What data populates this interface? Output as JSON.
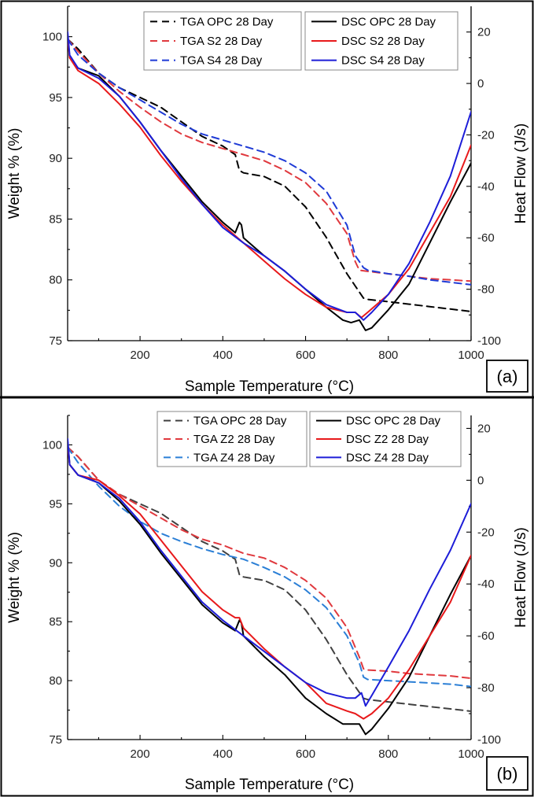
{
  "chart_data": [
    {
      "type": "line",
      "panel_label": "(a)",
      "xlabel": "Sample Temperature (°C)",
      "ylabel": "Weight % (%)",
      "y2label": "Heat Flow (J/s)",
      "xlim": [
        25,
        1000
      ],
      "ylim": [
        75,
        102.5
      ],
      "y2lim": [
        -100,
        30
      ],
      "xticks": [
        200,
        400,
        600,
        800,
        1000
      ],
      "yticks": [
        75,
        80,
        85,
        90,
        95,
        100
      ],
      "y2ticks": [
        -100,
        -80,
        -60,
        -40,
        -20,
        0,
        20
      ],
      "grid": false,
      "legend": [
        "top-center",
        "top-right"
      ],
      "series": [
        {
          "name": "TGA OPC 28 Day",
          "axis": "left",
          "style": "dashed",
          "color": "#000000",
          "x": [
            25,
            50,
            100,
            150,
            200,
            250,
            300,
            350,
            400,
            430,
            440,
            450,
            500,
            550,
            600,
            650,
            700,
            720,
            740,
            750,
            800,
            850,
            900,
            950,
            1000
          ],
          "y": [
            99.8,
            99.0,
            97.0,
            95.8,
            95.0,
            94.2,
            93.0,
            91.8,
            91.0,
            90.3,
            89.0,
            88.8,
            88.5,
            87.7,
            86.0,
            83.5,
            80.5,
            79.5,
            78.5,
            78.4,
            78.2,
            78.0,
            77.8,
            77.6,
            77.4
          ]
        },
        {
          "name": "TGA S2 28 Day",
          "axis": "left",
          "style": "dashed",
          "color": "#e0393e",
          "x": [
            25,
            50,
            100,
            150,
            200,
            250,
            300,
            350,
            400,
            450,
            500,
            550,
            600,
            650,
            700,
            720,
            730,
            750,
            800,
            850,
            900,
            950,
            1000
          ],
          "y": [
            99.8,
            98.8,
            97.0,
            95.5,
            94.2,
            93.0,
            92.0,
            91.3,
            90.8,
            90.3,
            89.8,
            89.0,
            88.0,
            86.3,
            83.8,
            81.5,
            80.8,
            80.7,
            80.5,
            80.3,
            80.1,
            80.0,
            79.9
          ]
        },
        {
          "name": "TGA S4 28 Day",
          "axis": "left",
          "style": "dashed",
          "color": "#1f3bd6",
          "x": [
            25,
            50,
            100,
            150,
            200,
            250,
            300,
            350,
            400,
            450,
            500,
            550,
            600,
            650,
            700,
            720,
            740,
            750,
            800,
            850,
            900,
            950,
            1000
          ],
          "y": [
            99.8,
            98.5,
            97.0,
            95.8,
            94.8,
            93.8,
            92.8,
            92.0,
            91.5,
            91.0,
            90.5,
            89.8,
            88.8,
            87.3,
            84.5,
            82.0,
            81.0,
            80.8,
            80.5,
            80.3,
            80.0,
            79.8,
            79.6
          ]
        },
        {
          "name": "DSC OPC 28 Day",
          "axis": "right",
          "style": "solid",
          "color": "#000000",
          "x": [
            25,
            30,
            50,
            100,
            150,
            200,
            250,
            300,
            350,
            400,
            430,
            440,
            445,
            450,
            500,
            550,
            600,
            650,
            690,
            710,
            730,
            745,
            760,
            800,
            850,
            900,
            950,
            1000
          ],
          "y": [
            19,
            10,
            6,
            3,
            -5,
            -15,
            -26,
            -36,
            -46,
            -54,
            -58,
            -54,
            -55,
            -60,
            -67,
            -73,
            -80,
            -87,
            -92,
            -93,
            -92,
            -96,
            -95,
            -88,
            -78,
            -62,
            -46,
            -31
          ]
        },
        {
          "name": "DSC S2 28 Day",
          "axis": "right",
          "style": "solid",
          "color": "#e8191b",
          "x": [
            25,
            30,
            50,
            100,
            150,
            200,
            250,
            300,
            350,
            400,
            450,
            500,
            550,
            600,
            650,
            700,
            720,
            735,
            750,
            800,
            850,
            900,
            950,
            1000
          ],
          "y": [
            18,
            10,
            5,
            0,
            -8,
            -17,
            -28,
            -38,
            -47,
            -55,
            -62,
            -69,
            -76,
            -82,
            -87,
            -89,
            -89,
            -91,
            -89,
            -82,
            -72,
            -58,
            -44,
            -24
          ]
        },
        {
          "name": "DSC S4 28 Day",
          "axis": "right",
          "style": "solid",
          "color": "#1d1dd8",
          "x": [
            25,
            30,
            50,
            100,
            150,
            200,
            250,
            300,
            350,
            400,
            450,
            500,
            550,
            600,
            650,
            700,
            720,
            740,
            760,
            800,
            850,
            900,
            950,
            1000
          ],
          "y": [
            20,
            11,
            6,
            2,
            -5,
            -15,
            -26,
            -37,
            -47,
            -56,
            -62,
            -67,
            -73,
            -80,
            -86,
            -89,
            -89,
            -92,
            -89,
            -82,
            -70,
            -54,
            -36,
            -11
          ]
        }
      ]
    },
    {
      "type": "line",
      "panel_label": "(b)",
      "xlabel": "Sample Temperature (°C)",
      "ylabel": "Weight % (%)",
      "y2label": "Heat Flow (J/s)",
      "xlim": [
        25,
        1000
      ],
      "ylim": [
        75,
        102.5
      ],
      "y2lim": [
        -100,
        25
      ],
      "xticks": [
        200,
        400,
        600,
        800,
        1000
      ],
      "yticks": [
        75,
        80,
        85,
        90,
        95,
        100
      ],
      "y2ticks": [
        -100,
        -80,
        -60,
        -40,
        -20,
        0,
        20
      ],
      "grid": false,
      "legend": [
        "top-center",
        "top-right"
      ],
      "series": [
        {
          "name": "TGA OPC 28 Day",
          "axis": "left",
          "style": "dashed",
          "color": "#404040",
          "x": [
            25,
            50,
            100,
            150,
            200,
            250,
            300,
            350,
            400,
            430,
            440,
            450,
            500,
            550,
            600,
            650,
            700,
            720,
            740,
            750,
            800,
            850,
            900,
            950,
            1000
          ],
          "y": [
            99.8,
            99.0,
            97.0,
            95.8,
            95.0,
            94.2,
            93.0,
            91.8,
            91.0,
            90.3,
            89.0,
            88.8,
            88.5,
            87.7,
            86.0,
            83.5,
            80.5,
            79.5,
            78.5,
            78.4,
            78.2,
            78.0,
            77.8,
            77.6,
            77.4
          ]
        },
        {
          "name": "TGA Z2 28 Day",
          "axis": "left",
          "style": "dashed",
          "color": "#e0393e",
          "x": [
            25,
            50,
            100,
            150,
            200,
            250,
            300,
            350,
            400,
            450,
            500,
            550,
            600,
            650,
            700,
            730,
            740,
            750,
            800,
            850,
            900,
            950,
            1000
          ],
          "y": [
            99.8,
            99.0,
            97.0,
            95.8,
            94.8,
            93.8,
            92.8,
            92.0,
            91.5,
            90.8,
            90.4,
            89.6,
            88.5,
            87.0,
            84.5,
            82.0,
            81.0,
            80.9,
            80.8,
            80.6,
            80.5,
            80.4,
            80.2
          ]
        },
        {
          "name": "TGA Z4 28 Day",
          "axis": "left",
          "style": "dashed",
          "color": "#2b7fd6",
          "x": [
            25,
            50,
            100,
            150,
            200,
            250,
            300,
            350,
            400,
            450,
            500,
            550,
            600,
            650,
            700,
            730,
            740,
            750,
            800,
            850,
            900,
            950,
            1000
          ],
          "y": [
            99.8,
            98.5,
            96.5,
            94.8,
            93.5,
            92.5,
            91.8,
            91.2,
            90.7,
            90.3,
            89.6,
            88.8,
            87.7,
            86.2,
            83.8,
            81.5,
            80.3,
            80.1,
            80.0,
            79.9,
            79.8,
            79.7,
            79.5
          ]
        },
        {
          "name": "DSC OPC 28 Day",
          "axis": "right",
          "style": "solid",
          "color": "#000000",
          "x": [
            25,
            30,
            50,
            100,
            150,
            200,
            250,
            300,
            350,
            400,
            430,
            440,
            445,
            450,
            500,
            550,
            600,
            650,
            690,
            710,
            730,
            745,
            760,
            800,
            850,
            900,
            950,
            1000
          ],
          "y": [
            15,
            6,
            2,
            -1,
            -8,
            -17,
            -28,
            -38,
            -48,
            -55,
            -58,
            -54,
            -55,
            -60,
            -68,
            -75,
            -84,
            -90,
            -94,
            -94,
            -94,
            -98,
            -96,
            -88,
            -76,
            -60,
            -44,
            -29
          ]
        },
        {
          "name": "DSC Z2 28 Day",
          "axis": "right",
          "style": "solid",
          "color": "#e8191b",
          "x": [
            25,
            30,
            50,
            100,
            150,
            200,
            250,
            300,
            350,
            400,
            430,
            440,
            450,
            500,
            550,
            600,
            650,
            700,
            720,
            740,
            760,
            800,
            850,
            900,
            950,
            1000
          ],
          "y": [
            14,
            6,
            2,
            0,
            -6,
            -13,
            -23,
            -33,
            -43,
            -50,
            -53,
            -53,
            -57,
            -65,
            -72,
            -78,
            -86,
            -89,
            -90,
            -92,
            -90,
            -84,
            -73,
            -60,
            -47,
            -29
          ]
        },
        {
          "name": "DSC Z4 28 Day",
          "axis": "right",
          "style": "solid",
          "color": "#1d1dd8",
          "x": [
            25,
            30,
            50,
            100,
            150,
            200,
            250,
            300,
            350,
            400,
            450,
            500,
            550,
            600,
            650,
            700,
            720,
            735,
            745,
            760,
            800,
            850,
            900,
            950,
            1000
          ],
          "y": [
            16,
            6,
            2,
            -1,
            -7,
            -16,
            -27,
            -37,
            -47,
            -54,
            -60,
            -66,
            -72,
            -78,
            -82,
            -84,
            -84,
            -82,
            -87,
            -83,
            -72,
            -58,
            -42,
            -27,
            -9
          ]
        }
      ]
    }
  ]
}
